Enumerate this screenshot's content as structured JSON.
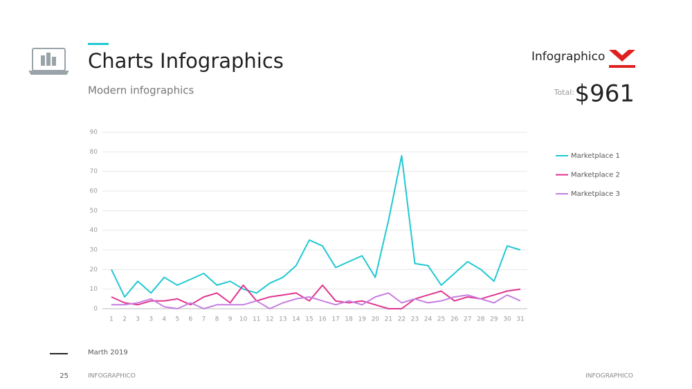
{
  "header": {
    "title": "Charts Infographics",
    "subtitle": "Modern infographics"
  },
  "logo": {
    "name": "Infographico"
  },
  "total": {
    "label": "Total:",
    "value": "$961"
  },
  "chart_data": {
    "type": "line",
    "categories": [
      "1",
      "2",
      "3",
      "3",
      "4",
      "5",
      "6",
      "7",
      "8",
      "9",
      "10",
      "11",
      "12",
      "13",
      "14",
      "15",
      "16",
      "17",
      "18",
      "19",
      "20",
      "21",
      "22",
      "23",
      "24",
      "25",
      "26",
      "27",
      "28",
      "29",
      "30",
      "31"
    ],
    "series": [
      {
        "name": "Marketplace 1",
        "color": "#1fc8d2",
        "values": [
          20,
          6,
          14,
          8,
          16,
          12,
          15,
          18,
          12,
          14,
          10,
          8,
          13,
          16,
          22,
          35,
          32,
          21,
          24,
          27,
          16,
          45,
          78,
          23,
          22,
          12,
          18,
          24,
          20,
          14,
          32,
          30
        ]
      },
      {
        "name": "Marketplace 2",
        "color": "#e0358f",
        "values": [
          6,
          3,
          2,
          4,
          4,
          5,
          2,
          6,
          8,
          3,
          12,
          4,
          6,
          7,
          8,
          4,
          12,
          4,
          3,
          4,
          2,
          0,
          0,
          5,
          7,
          9,
          4,
          6,
          5,
          7,
          9,
          10
        ]
      },
      {
        "name": "Marketplace 3",
        "color": "#c57ee0",
        "values": [
          2,
          2,
          3,
          5,
          1,
          0,
          3,
          0,
          2,
          2,
          2,
          4,
          0,
          3,
          5,
          6,
          4,
          2,
          4,
          2,
          6,
          8,
          3,
          5,
          3,
          4,
          6,
          7,
          5,
          3,
          7,
          4
        ]
      }
    ],
    "ylim": [
      0,
      90
    ],
    "yticks": [
      0,
      10,
      20,
      30,
      40,
      50,
      60,
      70,
      80,
      90
    ],
    "grid": true,
    "legend": "right"
  },
  "footer": {
    "date": "Marth 2019",
    "page": "25",
    "left_brand": "INFOGRAPHICO",
    "right_brand": "INFOGRAPHICO"
  }
}
